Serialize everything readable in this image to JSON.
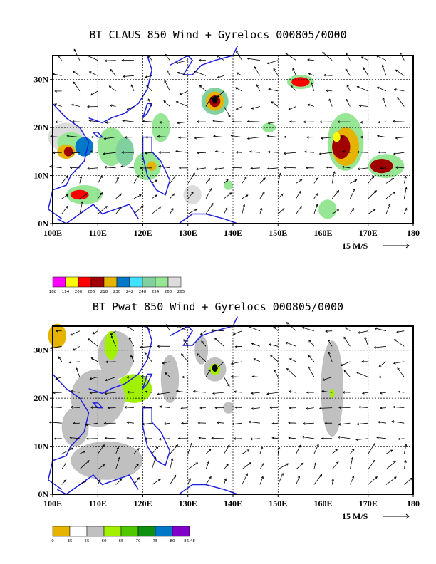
{
  "chart_data": [
    {
      "type": "heatmap",
      "title": "BT CLAUS 850 Wind + Gyrelocs 000805/0000",
      "variable": "brightness temperature shading with 850 wind vectors",
      "x_ticks": [
        "100E",
        "110E",
        "120E",
        "130E",
        "140E",
        "150E",
        "160E",
        "170E",
        "180"
      ],
      "y_ticks": [
        "0N",
        "10N",
        "20N",
        "30N"
      ],
      "xlim": [
        100,
        180
      ],
      "ylim": [
        0,
        35
      ],
      "grid": "dashed lines every 10 degrees",
      "vector_reference": "15 M/S",
      "colorbar": {
        "levels": [
          "188",
          "194",
          "200",
          "206",
          "218",
          "230",
          "242",
          "248",
          "254",
          "260",
          "265"
        ],
        "colors": [
          "#ff00ff",
          "#ffff00",
          "#ff0000",
          "#a00000",
          "#e6b400",
          "#0078c8",
          "#40e0ff",
          "#80d0a0",
          "#96e696",
          "#dcdcdc"
        ]
      }
    },
    {
      "type": "heatmap",
      "title": "BT Pwat 850 Wind + Gyrelocs 000805/0000",
      "variable": "precipitable water shading with 850 wind vectors",
      "x_ticks": [
        "100E",
        "110E",
        "120E",
        "130E",
        "140E",
        "150E",
        "160E",
        "170E",
        "180"
      ],
      "y_ticks": [
        "0N",
        "10N",
        "20N",
        "30N"
      ],
      "xlim": [
        100,
        180
      ],
      "ylim": [
        0,
        35
      ],
      "grid": "dashed lines every 10 degrees",
      "vector_reference": "15 M/S",
      "colorbar": {
        "levels": [
          "0",
          "35",
          "55",
          "60",
          "65",
          "70",
          "75",
          "80",
          "86.48"
        ],
        "colors": [
          "#e6b400",
          "#ffffff",
          "#c0c0c0",
          "#a0f000",
          "#50c800",
          "#109010",
          "#0078c8",
          "#8000c8"
        ]
      }
    }
  ]
}
